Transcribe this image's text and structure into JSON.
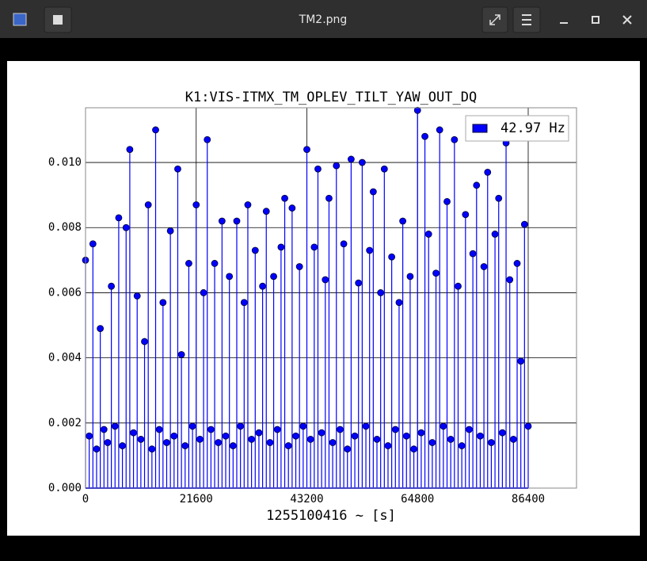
{
  "window": {
    "title": "TM2.png"
  },
  "chart_data": {
    "type": "stem",
    "title": "K1:VIS-ITMX_TM_OPLEV_TILT_YAW_OUT_DQ",
    "x_label": "1255100416 ~ [s]",
    "x": [
      0,
      720,
      1440,
      2160,
      2880,
      3600,
      4320,
      5040,
      5760,
      6480,
      7200,
      7920,
      8640,
      9360,
      10080,
      10800,
      11520,
      12240,
      12960,
      13680,
      14400,
      15120,
      15840,
      16560,
      17280,
      18000,
      18720,
      19440,
      20160,
      20880,
      21600,
      22320,
      23040,
      23760,
      24480,
      25200,
      25920,
      26640,
      27360,
      28080,
      28800,
      29520,
      30240,
      30960,
      31680,
      32400,
      33120,
      33840,
      34560,
      35280,
      36000,
      36720,
      37440,
      38160,
      38880,
      39600,
      40320,
      41040,
      41760,
      42480,
      43200,
      43920,
      44640,
      45360,
      46080,
      46800,
      47520,
      48240,
      48960,
      49680,
      50400,
      51120,
      51840,
      52560,
      53280,
      54000,
      54720,
      55440,
      56160,
      56880,
      57600,
      58320,
      59040,
      59760,
      60480,
      61200,
      61920,
      62640,
      63360,
      64080,
      64800,
      65520,
      66240,
      66960,
      67680,
      68400,
      69120,
      69840,
      70560,
      71280,
      72000,
      72720,
      73440,
      74160,
      74880,
      75600,
      76320,
      77040,
      77760,
      78480,
      79200,
      79920,
      80640,
      81360,
      82080,
      82800,
      83520,
      84240,
      84960,
      85680,
      86400
    ],
    "series": [
      {
        "name": "42.97 Hz",
        "color": "#0000ff",
        "values": [
          0.007,
          0.0016,
          0.0075,
          0.0012,
          0.0049,
          0.0018,
          0.0014,
          0.0062,
          0.0019,
          0.0083,
          0.0013,
          0.008,
          0.0104,
          0.0017,
          0.0059,
          0.0015,
          0.0045,
          0.0087,
          0.0012,
          0.011,
          0.0018,
          0.0057,
          0.0014,
          0.0079,
          0.0016,
          0.0098,
          0.0041,
          0.0013,
          0.0069,
          0.0019,
          0.0087,
          0.0015,
          0.006,
          0.0107,
          0.0018,
          0.0069,
          0.0014,
          0.0082,
          0.0016,
          0.0065,
          0.0013,
          0.0082,
          0.0019,
          0.0057,
          0.0087,
          0.0015,
          0.0073,
          0.0017,
          0.0062,
          0.0085,
          0.0014,
          0.0065,
          0.0018,
          0.0074,
          0.0089,
          0.0013,
          0.0086,
          0.0016,
          0.0068,
          0.0019,
          0.0104,
          0.0015,
          0.0074,
          0.0098,
          0.0017,
          0.0064,
          0.0089,
          0.0014,
          0.0099,
          0.0018,
          0.0075,
          0.0012,
          0.0101,
          0.0016,
          0.0063,
          0.01,
          0.0019,
          0.0073,
          0.0091,
          0.0015,
          0.006,
          0.0098,
          0.0013,
          0.0071,
          0.0018,
          0.0057,
          0.0082,
          0.0016,
          0.0065,
          0.0012,
          0.0116,
          0.0017,
          0.0108,
          0.0078,
          0.0014,
          0.0066,
          0.011,
          0.0019,
          0.0088,
          0.0015,
          0.0107,
          0.0062,
          0.0013,
          0.0084,
          0.0018,
          0.0072,
          0.0093,
          0.0016,
          0.0068,
          0.0097,
          0.0014,
          0.0078,
          0.0089,
          0.0017,
          0.0106,
          0.0064,
          0.0015,
          0.0069,
          0.0039,
          0.0081,
          0.0019
        ]
      }
    ],
    "xlim": [
      0,
      95830
    ],
    "ylim": [
      0,
      0.01168
    ],
    "xticks": [
      0,
      21600,
      43200,
      64800,
      86400
    ],
    "yticks": [
      {
        "value": 0,
        "label": "0.000"
      },
      {
        "value": 0.002,
        "label": "0.002"
      },
      {
        "value": 0.004,
        "label": "0.004"
      },
      {
        "value": 0.006,
        "label": "0.006"
      },
      {
        "value": 0.008,
        "label": "0.008"
      },
      {
        "value": 0.01,
        "label": "0.010"
      }
    ],
    "grid": true,
    "legend": "upper right"
  }
}
